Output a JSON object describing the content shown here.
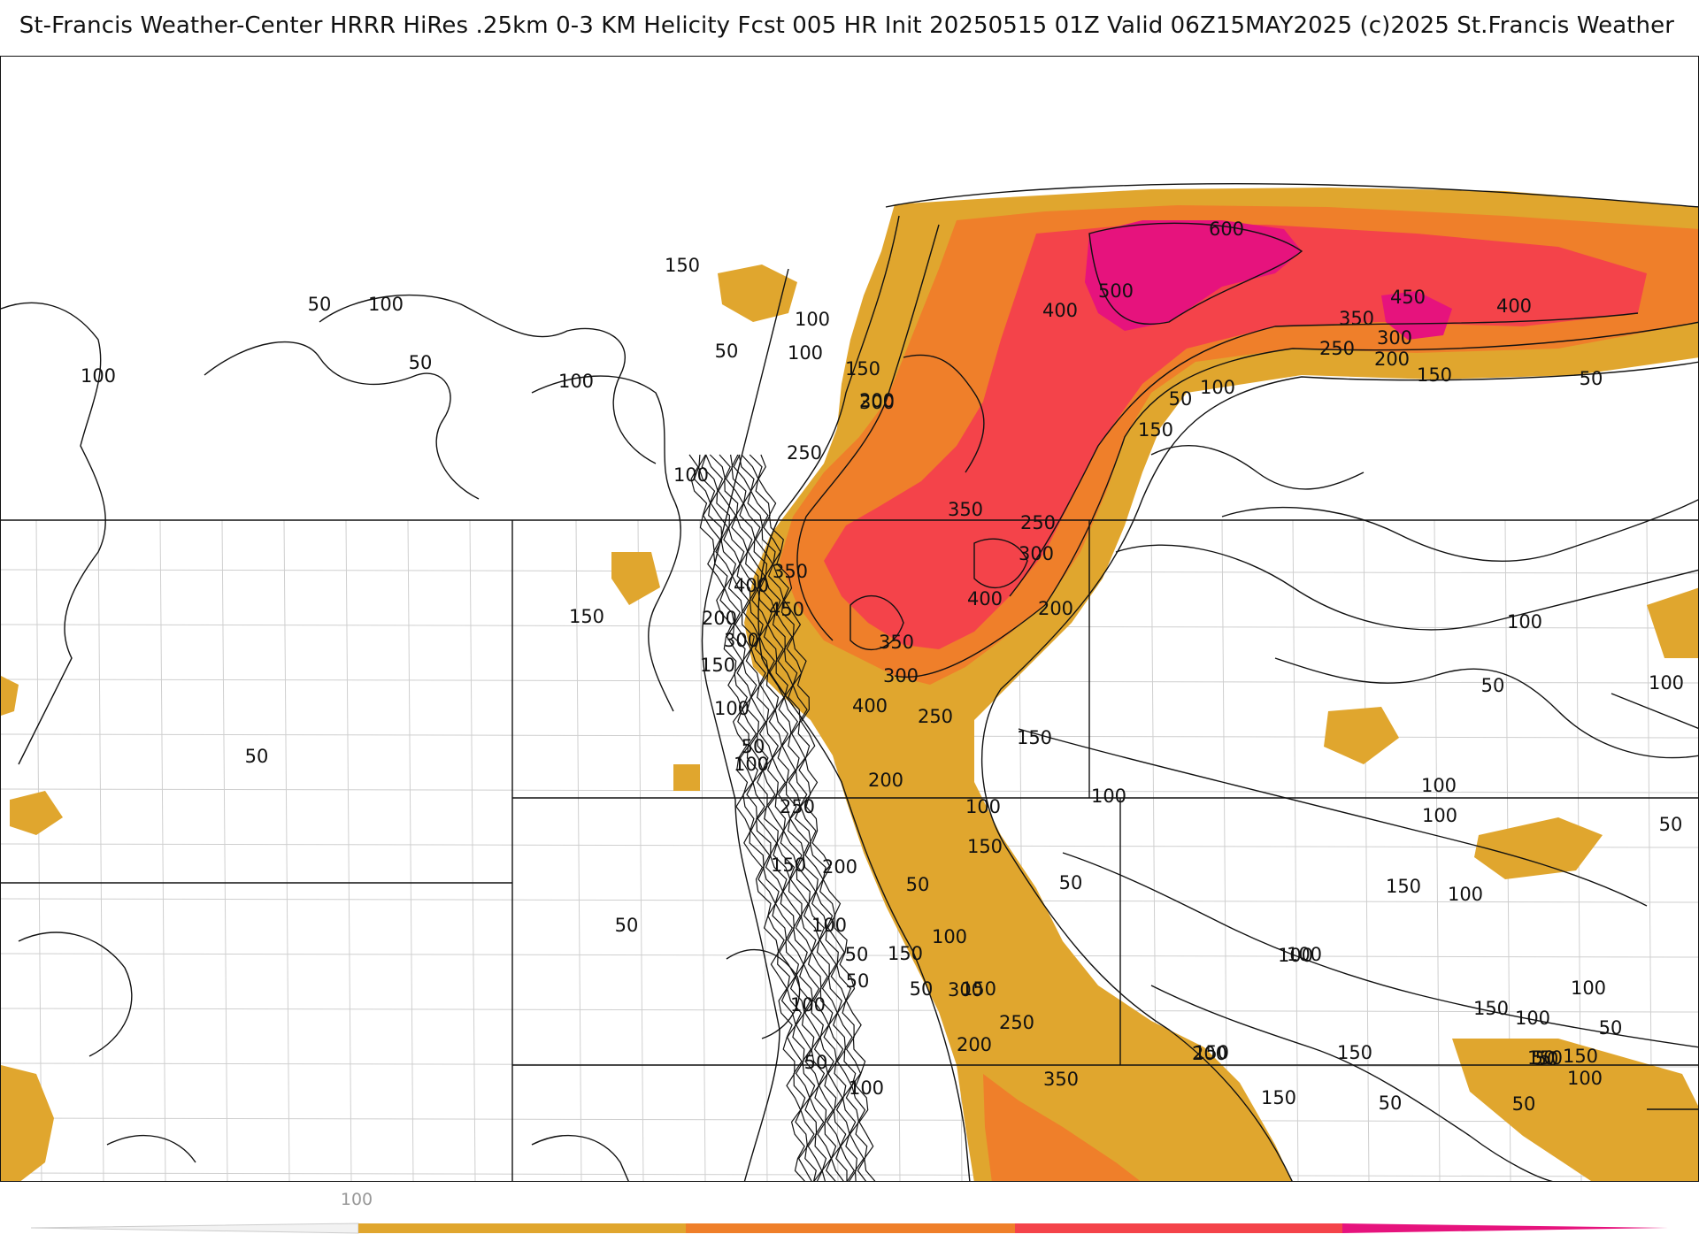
{
  "title": "St-Francis Weather-Center HRRR HiRes .25km 0-3 KM Helicity Fcst 005 HR Init 20250515 01Z  Valid 06Z15MAY2025    (c)2025 St.Francis Weather",
  "colors": {
    "band_100_200": "#e0a62e",
    "band_200_300": "#ef7f2a",
    "band_300_400": "#f4434a",
    "band_400_500": "#f4434a",
    "band_500_plus": "#e6137d",
    "contour": "#111111",
    "border": "#111111",
    "county": "#cfcfcf"
  },
  "contour_labels": [
    "600",
    "500",
    "400",
    "450",
    "350",
    "400",
    "300",
    "250",
    "200",
    "150",
    "50",
    "100",
    "150",
    "50",
    "100",
    "50",
    "100",
    "50",
    "100",
    "150",
    "100",
    "50",
    "100",
    "150",
    "200",
    "300",
    "250",
    "100",
    "350",
    "250",
    "300",
    "400",
    "200",
    "350",
    "400",
    "450",
    "200",
    "300",
    "150",
    "100",
    "50",
    "100",
    "150",
    "350",
    "300",
    "400",
    "250",
    "150",
    "200",
    "100",
    "100",
    "250",
    "150",
    "200",
    "150",
    "50",
    "100",
    "150",
    "50",
    "100",
    "50",
    "300",
    "250",
    "200",
    "350",
    "50",
    "100",
    "200",
    "150",
    "150",
    "100",
    "150",
    "100",
    "150",
    "100",
    "50",
    "50",
    "100",
    "150",
    "50",
    "100",
    "50",
    "150",
    "100",
    "50",
    "100",
    "50",
    "50",
    "50",
    "100",
    "100",
    "50",
    "100",
    "150",
    "100",
    "50",
    "150",
    "50"
  ],
  "colorbar": {
    "tick_labels": [
      "100"
    ]
  }
}
